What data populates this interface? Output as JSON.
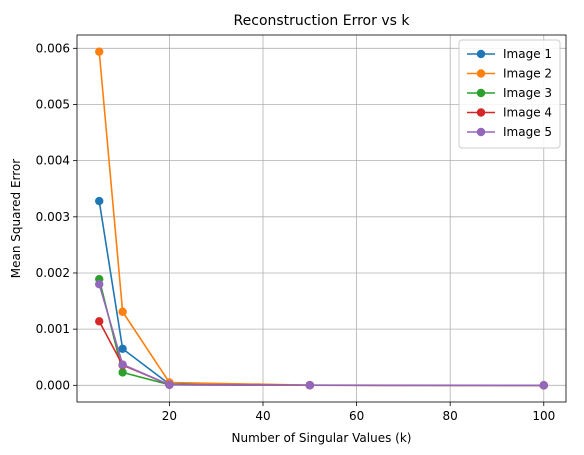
{
  "chart_data": {
    "type": "line",
    "title": "Reconstruction Error vs k",
    "xlabel": "Number of Singular Values (k)",
    "ylabel": "Mean Squared Error",
    "x": [
      5,
      10,
      20,
      50,
      100
    ],
    "xlim": [
      0.25,
      104.75
    ],
    "ylim": [
      -0.000297,
      0.006237
    ],
    "xticks": [
      20,
      40,
      60,
      80,
      100
    ],
    "yticks": [
      0.0,
      0.001,
      0.002,
      0.003,
      0.004,
      0.005,
      0.006
    ],
    "xtick_labels": [
      "20",
      "40",
      "60",
      "80",
      "100"
    ],
    "ytick_labels": [
      "0.000",
      "0.001",
      "0.002",
      "0.003",
      "0.004",
      "0.005",
      "0.006"
    ],
    "grid": true,
    "legend_position": "top-right",
    "series": [
      {
        "name": "Image 1",
        "color": "#1f77b4",
        "values": [
          0.00328,
          0.00065,
          2e-05,
          2e-06,
          0.0
        ]
      },
      {
        "name": "Image 2",
        "color": "#ff7f0e",
        "values": [
          0.00594,
          0.00131,
          5e-05,
          3e-06,
          0.0
        ]
      },
      {
        "name": "Image 3",
        "color": "#2ca02c",
        "values": [
          0.00189,
          0.00023,
          1e-05,
          1e-06,
          0.0
        ]
      },
      {
        "name": "Image 4",
        "color": "#d62728",
        "values": [
          0.00114,
          0.00036,
          1e-05,
          1e-06,
          0.0
        ]
      },
      {
        "name": "Image 5",
        "color": "#9467bd",
        "values": [
          0.0018,
          0.00037,
          1e-05,
          1e-06,
          0.0
        ]
      }
    ]
  }
}
